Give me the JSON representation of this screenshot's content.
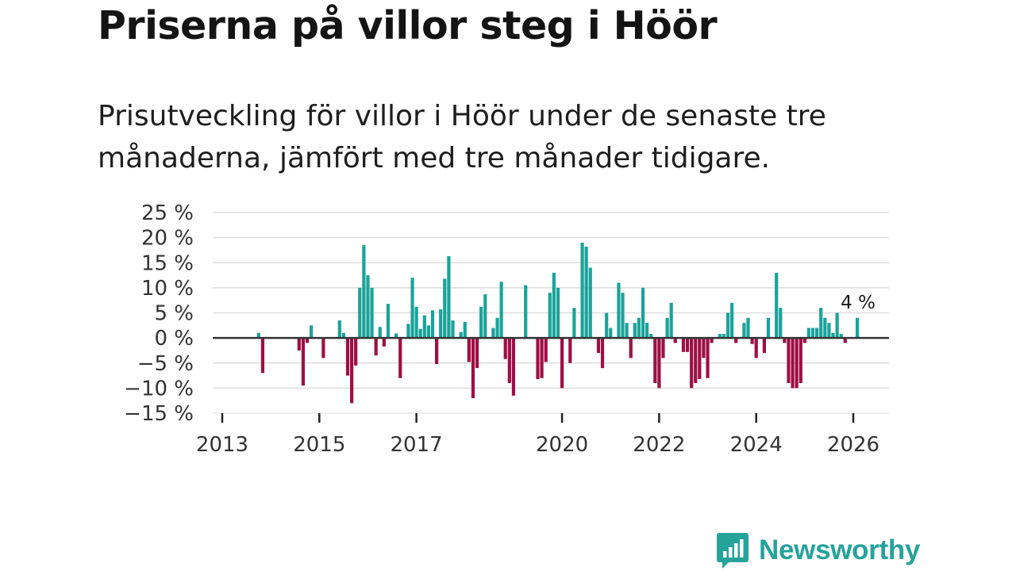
{
  "title": "Priserna på villor steg i Höör",
  "subtitle": "Prisutveckling för villor i Höör under de senaste tre månaderna, jämfört med tre månader tidigare.",
  "brand": {
    "name": "Newsworthy",
    "color": "#25a39b",
    "icon": "bar-chart-speech-bubble-icon"
  },
  "colors": {
    "positive": "#1aa39a",
    "negative": "#9e0f43",
    "zero_line": "#333333",
    "grid": "#dddddd"
  },
  "chart_data": {
    "type": "bar",
    "title": "Priserna på villor steg i Höör",
    "xlabel": "",
    "ylabel": "",
    "ylim": [
      -15,
      25
    ],
    "y_ticks": [
      25,
      20,
      15,
      10,
      5,
      0,
      -5,
      -10,
      -15
    ],
    "y_tick_labels": [
      "25 %",
      "20 %",
      "15 %",
      "10 %",
      "5 %",
      "0 %",
      "−5 %",
      "−10 %",
      "−15 %"
    ],
    "x_ticks": [
      2013,
      2015,
      2017,
      2020,
      2022,
      2024,
      2026
    ],
    "x_tick_labels": [
      "2013",
      "2015",
      "2017",
      "2020",
      "2022",
      "2024",
      "2026"
    ],
    "grid": true,
    "annotation": {
      "label": "4 %",
      "x": 2026.083,
      "y": 4
    },
    "series": [
      {
        "name": "Prisutveckling",
        "points": [
          [
            2013.75,
            1
          ],
          [
            2013.833,
            -7
          ],
          [
            2014.583,
            -2.5
          ],
          [
            2014.667,
            -9.5
          ],
          [
            2014.75,
            -1
          ],
          [
            2014.833,
            2.5
          ],
          [
            2015.083,
            -4
          ],
          [
            2015.417,
            3.5
          ],
          [
            2015.5,
            1
          ],
          [
            2015.583,
            -7.5
          ],
          [
            2015.667,
            -13
          ],
          [
            2015.75,
            -5.5
          ],
          [
            2015.833,
            10
          ],
          [
            2015.917,
            18.5
          ],
          [
            2016.0,
            12.5
          ],
          [
            2016.083,
            10
          ],
          [
            2016.167,
            -3.5
          ],
          [
            2016.25,
            2.2
          ],
          [
            2016.333,
            -1.7
          ],
          [
            2016.417,
            6.8
          ],
          [
            2016.583,
            0.9
          ],
          [
            2016.667,
            -8
          ],
          [
            2016.833,
            2.8
          ],
          [
            2016.917,
            12
          ],
          [
            2017.0,
            6.2
          ],
          [
            2017.083,
            1.8
          ],
          [
            2017.167,
            4.5
          ],
          [
            2017.25,
            2.5
          ],
          [
            2017.333,
            5.5
          ],
          [
            2017.417,
            -5.2
          ],
          [
            2017.5,
            5.7
          ],
          [
            2017.583,
            11.8
          ],
          [
            2017.667,
            16.3
          ],
          [
            2017.75,
            3.5
          ],
          [
            2017.917,
            1.2
          ],
          [
            2018.0,
            3.2
          ],
          [
            2018.083,
            -4.8
          ],
          [
            2018.167,
            -12
          ],
          [
            2018.25,
            -6
          ],
          [
            2018.333,
            6.2
          ],
          [
            2018.417,
            8.7
          ],
          [
            2018.583,
            2
          ],
          [
            2018.667,
            4
          ],
          [
            2018.75,
            11.2
          ],
          [
            2018.833,
            -4.2
          ],
          [
            2018.917,
            -9
          ],
          [
            2019.0,
            -11.5
          ],
          [
            2019.25,
            10.5
          ],
          [
            2019.5,
            -8.2
          ],
          [
            2019.583,
            -8
          ],
          [
            2019.667,
            -4.8
          ],
          [
            2019.75,
            9
          ],
          [
            2019.833,
            13
          ],
          [
            2019.917,
            10
          ],
          [
            2020.0,
            -10
          ],
          [
            2020.167,
            -5
          ],
          [
            2020.25,
            6
          ],
          [
            2020.417,
            19
          ],
          [
            2020.5,
            18.2
          ],
          [
            2020.583,
            14
          ],
          [
            2020.75,
            -3
          ],
          [
            2020.833,
            -6
          ],
          [
            2020.917,
            5
          ],
          [
            2021.0,
            2
          ],
          [
            2021.167,
            11
          ],
          [
            2021.25,
            9
          ],
          [
            2021.333,
            3
          ],
          [
            2021.417,
            -4
          ],
          [
            2021.5,
            3
          ],
          [
            2021.583,
            4
          ],
          [
            2021.667,
            10
          ],
          [
            2021.75,
            3
          ],
          [
            2021.833,
            0.8
          ],
          [
            2021.917,
            -9
          ],
          [
            2022.0,
            -10
          ],
          [
            2022.083,
            -4
          ],
          [
            2022.167,
            4
          ],
          [
            2022.25,
            7
          ],
          [
            2022.333,
            -1
          ],
          [
            2022.5,
            -2.8
          ],
          [
            2022.583,
            -2.8
          ],
          [
            2022.667,
            -10
          ],
          [
            2022.75,
            -9
          ],
          [
            2022.833,
            -8.2
          ],
          [
            2022.917,
            -4
          ],
          [
            2023.0,
            -8
          ],
          [
            2023.083,
            -1
          ],
          [
            2023.25,
            0.8
          ],
          [
            2023.333,
            0.8
          ],
          [
            2023.417,
            5
          ],
          [
            2023.5,
            7
          ],
          [
            2023.583,
            -1
          ],
          [
            2023.75,
            3
          ],
          [
            2023.833,
            4
          ],
          [
            2023.917,
            -1.2
          ],
          [
            2024.0,
            -4
          ],
          [
            2024.167,
            -3
          ],
          [
            2024.25,
            4
          ],
          [
            2024.417,
            13
          ],
          [
            2024.5,
            6
          ],
          [
            2024.583,
            -1
          ],
          [
            2024.667,
            -9
          ],
          [
            2024.75,
            -10
          ],
          [
            2024.833,
            -10
          ],
          [
            2024.917,
            -9
          ],
          [
            2025.0,
            -1
          ],
          [
            2025.083,
            2
          ],
          [
            2025.167,
            2
          ],
          [
            2025.25,
            2
          ],
          [
            2025.333,
            6
          ],
          [
            2025.417,
            4
          ],
          [
            2025.5,
            3
          ],
          [
            2025.583,
            1
          ],
          [
            2025.667,
            5
          ],
          [
            2025.75,
            0.8
          ],
          [
            2025.833,
            -1
          ],
          [
            2026.083,
            4
          ]
        ]
      }
    ]
  }
}
